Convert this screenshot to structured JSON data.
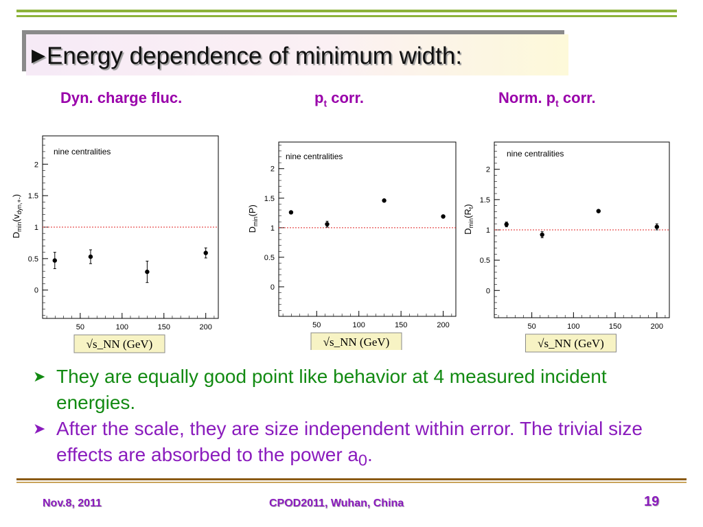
{
  "slide": {
    "title": "Energy dependence of minimum width:",
    "column_headers": [
      {
        "main": "Dyn. charge fluc.",
        "sub": ""
      },
      {
        "main": "p",
        "sub": "t",
        "rest": " corr."
      },
      {
        "main": "Norm. p",
        "sub": "t",
        "rest": " corr."
      }
    ],
    "bullets": [
      {
        "text": "They are equally good point like behavior at 4 measured incident energies."
      },
      {
        "text": "After the scale, they are size independent within error. The trivial size effects are absorbed to the power a",
        "sub": "0",
        "tail": "."
      }
    ],
    "footer": {
      "left": "Nov.8, 2011",
      "center": "CPOD2011, Wuhan, China",
      "page": "19"
    }
  },
  "colors": {
    "accent_green": "#8db33a",
    "purple": "#9900aa",
    "bullet_green": "#128a12",
    "bullet_purple": "#8a1bbd",
    "reference_line": "#e02020"
  },
  "chart_data": [
    {
      "type": "scatter",
      "annotation": "nine centralities",
      "ylabel_main": "D",
      "ylabel_sub": "min",
      "ylabel_paren": "(v",
      "ylabel_paren_sub": "dyn,+-",
      "ylabel_close": ")",
      "xlabel": "√s_NN (GeV)",
      "xticks": [
        50,
        100,
        150,
        200
      ],
      "yticks": [
        0,
        0.5,
        1,
        1.5,
        2
      ],
      "xlim": [
        5,
        215
      ],
      "ylim": [
        -0.45,
        2.45
      ],
      "reference_line": 1,
      "points": [
        {
          "x": 19.6,
          "y": 0.47,
          "err": 0.13
        },
        {
          "x": 62.4,
          "y": 0.53,
          "err": 0.11
        },
        {
          "x": 130,
          "y": 0.29,
          "err": 0.17
        },
        {
          "x": 200,
          "y": 0.59,
          "err": 0.08
        }
      ]
    },
    {
      "type": "scatter",
      "annotation": "nine centralities",
      "ylabel_main": "D",
      "ylabel_sub": "min",
      "ylabel_paren": "(P)",
      "ylabel_paren_sub": "",
      "ylabel_close": "",
      "xlabel": "√s_NN (GeV)",
      "xticks": [
        50,
        100,
        150,
        200
      ],
      "yticks": [
        0,
        0.5,
        1,
        1.5,
        2
      ],
      "xlim": [
        5,
        215
      ],
      "ylim": [
        -0.5,
        2.45
      ],
      "reference_line": 1,
      "points": [
        {
          "x": 19.6,
          "y": 1.26,
          "err": 0.02
        },
        {
          "x": 62.4,
          "y": 1.06,
          "err": 0.05
        },
        {
          "x": 130,
          "y": 1.46,
          "err": 0.02
        },
        {
          "x": 200,
          "y": 1.19,
          "err": 0.02
        }
      ]
    },
    {
      "type": "scatter",
      "annotation": "nine centralities",
      "ylabel_main": "D",
      "ylabel_sub": "min",
      "ylabel_paren": "(R",
      "ylabel_paren_sub": "t",
      "ylabel_close": ")",
      "xlabel": "√s_NN (GeV)",
      "xticks": [
        50,
        100,
        150,
        200
      ],
      "yticks": [
        0,
        0.5,
        1,
        1.5,
        2
      ],
      "xlim": [
        5,
        215
      ],
      "ylim": [
        -0.45,
        2.45
      ],
      "reference_line": 1,
      "points": [
        {
          "x": 19.6,
          "y": 1.09,
          "err": 0.04
        },
        {
          "x": 62.4,
          "y": 0.92,
          "err": 0.05
        },
        {
          "x": 130,
          "y": 1.31,
          "err": 0.02
        },
        {
          "x": 200,
          "y": 1.05,
          "err": 0.05
        }
      ]
    }
  ]
}
